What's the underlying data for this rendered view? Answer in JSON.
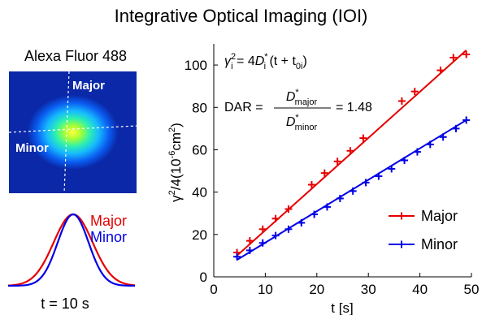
{
  "title": "Integrative Optical Imaging (IOI)",
  "left_panel": {
    "fluorophore": "Alexa Fluor 488",
    "image_major_label": "Major",
    "image_minor_label": "Minor",
    "profile_major_label": "Major",
    "profile_minor_label": "Minor",
    "time_label": "t = 10 s",
    "major_color": "#e60000",
    "minor_color": "#0000e6"
  },
  "equations": {
    "eq1": {
      "lhs_gamma": "γ",
      "lhs_sup": "2",
      "lhs_sub": "i",
      "eq": " = 4",
      "D": "D",
      "D_sup": "*",
      "D_sub": "i",
      "rest": " (t + t",
      "t0_sub": "0i",
      "close": ")"
    },
    "eq2": {
      "dar": "DAR =",
      "num_D": "D",
      "num_sup": "*",
      "num_sub": "major",
      "den_D": "D",
      "den_sup": "*",
      "den_sub": "minor",
      "value": "= 1.48"
    }
  },
  "chart_data": {
    "type": "line",
    "xlabel": "t [s]",
    "ylabel_parts": {
      "main": "γ",
      "sup": "2",
      "rest": "/4(10",
      "sup2": "-6",
      "unit": "cm",
      "sup3": "2",
      "close": ")"
    },
    "xlim": [
      0,
      50
    ],
    "ylim": [
      0,
      110
    ],
    "xticks": [
      0,
      10,
      20,
      30,
      40,
      50
    ],
    "yticks": [
      0,
      20,
      40,
      60,
      80,
      100
    ],
    "grid": false,
    "legend_position": "bottom-right",
    "series": [
      {
        "name": "Major",
        "color": "#e60000",
        "x": [
          4.5,
          7,
          9.5,
          12,
          14.5,
          19,
          21.5,
          24,
          26.5,
          29,
          36.5,
          39,
          44,
          46.5,
          49
        ],
        "y": [
          11.5,
          17,
          22.5,
          27.5,
          32,
          43.5,
          49,
          54.5,
          59.5,
          65.5,
          83,
          87.5,
          97.5,
          103.5,
          105
        ],
        "fit": [
          [
            4.5,
            10
          ],
          [
            49,
            107
          ]
        ]
      },
      {
        "name": "Minor",
        "color": "#0000e6",
        "x": [
          4.5,
          7,
          9.5,
          12,
          14.5,
          17,
          19.5,
          22,
          24.5,
          27,
          29.5,
          32,
          34.5,
          37,
          39.5,
          42,
          44.5,
          47,
          49
        ],
        "y": [
          9.5,
          12.5,
          16,
          19.5,
          22.5,
          25.5,
          29.5,
          33,
          37,
          40.5,
          44.5,
          47.5,
          51,
          55,
          59,
          62.5,
          66,
          70,
          74
        ],
        "fit": [
          [
            4.5,
            8
          ],
          [
            49,
            74
          ]
        ]
      }
    ]
  }
}
